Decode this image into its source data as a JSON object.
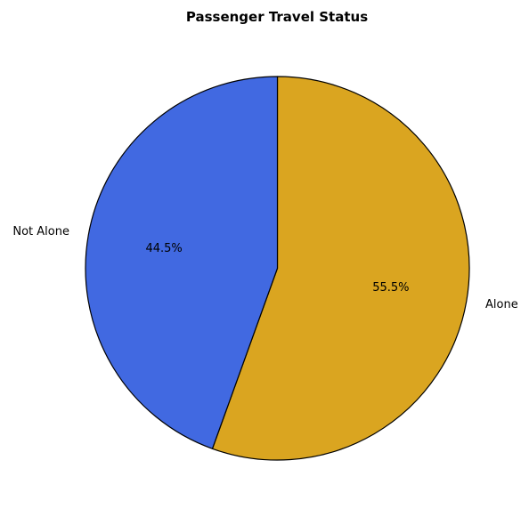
{
  "chart_data": {
    "type": "pie",
    "title": "Passenger Travel Status",
    "slices": [
      {
        "label": "Alone",
        "value": 55.5,
        "pct_label": "55.5%",
        "color": "#DAA520"
      },
      {
        "label": "Not Alone",
        "value": 44.5,
        "pct_label": "44.5%",
        "color": "#4169E1"
      }
    ],
    "start_angle": "top (12 o'clock)",
    "direction": "clockwise",
    "edgecolor": "#000000",
    "legend": "none"
  }
}
